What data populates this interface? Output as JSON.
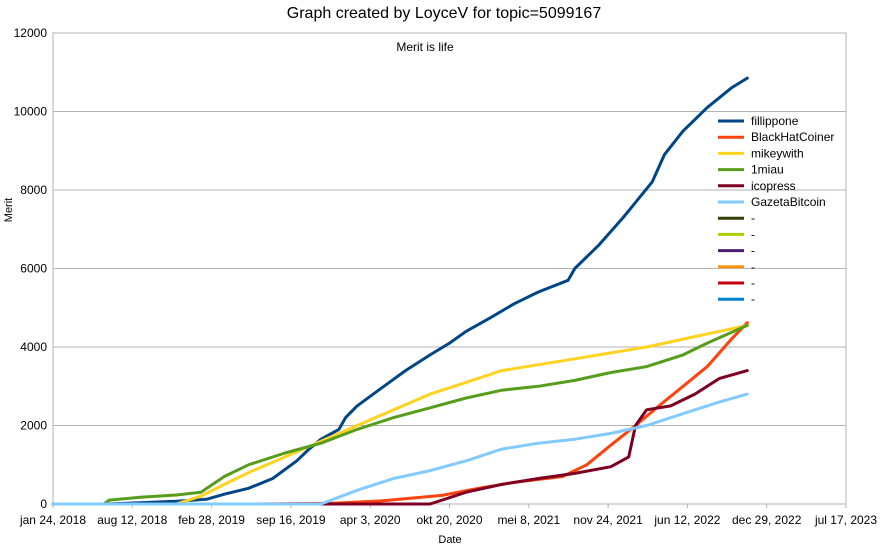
{
  "chart_data": {
    "type": "line",
    "title": "Graph created by LoyceV for topic=5099167",
    "subtitle": "Merit is life",
    "xlabel": "Date",
    "ylabel": "Merit",
    "ylim": [
      0,
      12000
    ],
    "yticks": [
      0,
      2000,
      4000,
      6000,
      8000,
      10000,
      12000
    ],
    "xlim": [
      "2018-01-24",
      "2023-07-17"
    ],
    "xticks": [
      {
        "date": "2018-01-24",
        "label": "jan 24, 2018"
      },
      {
        "date": "2018-08-12",
        "label": "aug 12, 2018"
      },
      {
        "date": "2019-02-28",
        "label": "feb 28, 2019"
      },
      {
        "date": "2019-09-16",
        "label": "sep 16, 2019"
      },
      {
        "date": "2020-04-03",
        "label": "apr 3, 2020"
      },
      {
        "date": "2020-10-20",
        "label": "okt 20, 2020"
      },
      {
        "date": "2021-05-08",
        "label": "mei 8, 2021"
      },
      {
        "date": "2021-11-24",
        "label": "nov 24, 2021"
      },
      {
        "date": "2022-06-12",
        "label": "jun 12, 2022"
      },
      {
        "date": "2022-12-29",
        "label": "dec 29, 2022"
      },
      {
        "date": "2023-07-17",
        "label": "jul 17, 2023"
      }
    ],
    "grid": "horizontal",
    "legend": "right",
    "series": [
      {
        "name": "fillippone",
        "color": "#004586",
        "points": [
          [
            "2018-01-24",
            0
          ],
          [
            "2018-06-01",
            0
          ],
          [
            "2018-09-01",
            30
          ],
          [
            "2018-12-01",
            70
          ],
          [
            "2019-02-15",
            120
          ],
          [
            "2019-04-01",
            250
          ],
          [
            "2019-06-01",
            400
          ],
          [
            "2019-08-01",
            650
          ],
          [
            "2019-10-01",
            1100
          ],
          [
            "2019-11-01",
            1400
          ],
          [
            "2019-12-01",
            1650
          ],
          [
            "2020-01-15",
            1900
          ],
          [
            "2020-02-01",
            2200
          ],
          [
            "2020-03-01",
            2500
          ],
          [
            "2020-05-01",
            2950
          ],
          [
            "2020-07-01",
            3400
          ],
          [
            "2020-09-01",
            3800
          ],
          [
            "2020-10-20",
            4100
          ],
          [
            "2020-12-01",
            4400
          ],
          [
            "2021-02-01",
            4750
          ],
          [
            "2021-04-01",
            5100
          ],
          [
            "2021-06-01",
            5400
          ],
          [
            "2021-08-15",
            5700
          ],
          [
            "2021-09-01",
            6000
          ],
          [
            "2021-11-01",
            6600
          ],
          [
            "2022-01-01",
            7300
          ],
          [
            "2022-03-15",
            8200
          ],
          [
            "2022-04-15",
            8900
          ],
          [
            "2022-06-01",
            9500
          ],
          [
            "2022-08-01",
            10100
          ],
          [
            "2022-10-01",
            10600
          ],
          [
            "2022-11-10",
            10850
          ]
        ]
      },
      {
        "name": "BlackHatCoiner",
        "color": "#ff420e",
        "points": [
          [
            "2018-01-24",
            0
          ],
          [
            "2019-06-01",
            0
          ],
          [
            "2020-01-01",
            20
          ],
          [
            "2020-05-01",
            80
          ],
          [
            "2020-10-01",
            220
          ],
          [
            "2021-01-01",
            400
          ],
          [
            "2021-04-01",
            550
          ],
          [
            "2021-08-01",
            700
          ],
          [
            "2021-10-01",
            1000
          ],
          [
            "2021-12-01",
            1500
          ],
          [
            "2022-02-01",
            2000
          ],
          [
            "2022-04-01",
            2500
          ],
          [
            "2022-06-01",
            3000
          ],
          [
            "2022-08-01",
            3500
          ],
          [
            "2022-10-01",
            4200
          ],
          [
            "2022-11-10",
            4620
          ]
        ]
      },
      {
        "name": "mikeywith",
        "color": "#ffd320",
        "points": [
          [
            "2018-01-24",
            0
          ],
          [
            "2018-12-01",
            0
          ],
          [
            "2019-02-01",
            200
          ],
          [
            "2019-04-01",
            500
          ],
          [
            "2019-06-01",
            800
          ],
          [
            "2019-09-01",
            1200
          ],
          [
            "2019-12-01",
            1600
          ],
          [
            "2020-03-01",
            2000
          ],
          [
            "2020-06-01",
            2400
          ],
          [
            "2020-09-01",
            2800
          ],
          [
            "2020-12-01",
            3100
          ],
          [
            "2021-03-01",
            3400
          ],
          [
            "2021-06-01",
            3550
          ],
          [
            "2021-09-01",
            3700
          ],
          [
            "2021-12-01",
            3850
          ],
          [
            "2022-03-01",
            4000
          ],
          [
            "2022-06-01",
            4200
          ],
          [
            "2022-09-01",
            4400
          ],
          [
            "2022-11-10",
            4550
          ]
        ]
      },
      {
        "name": "1miau",
        "color": "#579d1c",
        "points": [
          [
            "2018-01-24",
            0
          ],
          [
            "2018-06-01",
            0
          ],
          [
            "2018-06-15",
            100
          ],
          [
            "2018-09-01",
            170
          ],
          [
            "2018-12-01",
            230
          ],
          [
            "2019-02-01",
            300
          ],
          [
            "2019-04-01",
            700
          ],
          [
            "2019-06-01",
            1000
          ],
          [
            "2019-09-01",
            1300
          ],
          [
            "2019-12-01",
            1550
          ],
          [
            "2020-03-01",
            1900
          ],
          [
            "2020-06-01",
            2200
          ],
          [
            "2020-09-01",
            2450
          ],
          [
            "2020-12-01",
            2700
          ],
          [
            "2021-03-01",
            2900
          ],
          [
            "2021-06-01",
            3000
          ],
          [
            "2021-09-01",
            3150
          ],
          [
            "2021-12-01",
            3350
          ],
          [
            "2022-03-01",
            3500
          ],
          [
            "2022-06-01",
            3800
          ],
          [
            "2022-08-01",
            4100
          ],
          [
            "2022-11-10",
            4550
          ]
        ]
      },
      {
        "name": "icopress",
        "color": "#7e0021",
        "points": [
          [
            "2018-01-24",
            0
          ],
          [
            "2020-09-01",
            0
          ],
          [
            "2020-12-01",
            300
          ],
          [
            "2021-03-01",
            500
          ],
          [
            "2021-06-01",
            650
          ],
          [
            "2021-09-01",
            780
          ],
          [
            "2021-12-01",
            950
          ],
          [
            "2022-01-15",
            1200
          ],
          [
            "2022-02-01",
            2000
          ],
          [
            "2022-03-01",
            2400
          ],
          [
            "2022-05-01",
            2500
          ],
          [
            "2022-07-01",
            2800
          ],
          [
            "2022-09-01",
            3200
          ],
          [
            "2022-11-10",
            3400
          ]
        ]
      },
      {
        "name": "GazetaBitcoin",
        "color": "#83caff",
        "points": [
          [
            "2018-01-24",
            0
          ],
          [
            "2019-12-01",
            0
          ],
          [
            "2020-03-01",
            350
          ],
          [
            "2020-06-01",
            650
          ],
          [
            "2020-09-01",
            850
          ],
          [
            "2020-12-01",
            1100
          ],
          [
            "2021-03-01",
            1400
          ],
          [
            "2021-06-01",
            1550
          ],
          [
            "2021-09-01",
            1650
          ],
          [
            "2021-12-01",
            1800
          ],
          [
            "2022-03-01",
            2000
          ],
          [
            "2022-06-01",
            2300
          ],
          [
            "2022-09-01",
            2600
          ],
          [
            "2022-11-10",
            2800
          ]
        ]
      },
      {
        "name": "-",
        "color": "#314004",
        "points": []
      },
      {
        "name": "-",
        "color": "#aecf00",
        "points": []
      },
      {
        "name": "-",
        "color": "#4b1f6f",
        "points": []
      },
      {
        "name": "-",
        "color": "#ff950e",
        "points": []
      },
      {
        "name": "-",
        "color": "#c5000b",
        "points": []
      },
      {
        "name": "-",
        "color": "#0084d1",
        "points": []
      }
    ]
  }
}
